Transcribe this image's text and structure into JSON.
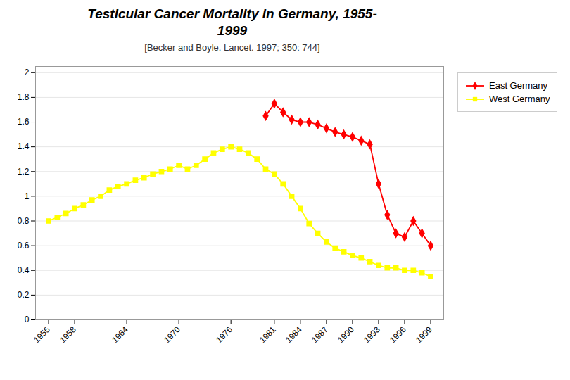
{
  "chart_data": {
    "type": "line",
    "title": "Testicular Cancer Mortality in Germany, 1955-\n1999",
    "subtitle": "[Becker and Boyle. Lancet. 1997; 350: 744]",
    "series": [
      {
        "name": "West Germany",
        "color": "#ffff00",
        "marker": "square",
        "line_style": "solid",
        "x": [
          1955,
          1956,
          1957,
          1958,
          1959,
          1960,
          1961,
          1962,
          1963,
          1964,
          1965,
          1966,
          1967,
          1968,
          1969,
          1970,
          1971,
          1972,
          1973,
          1974,
          1975,
          1976,
          1977,
          1978,
          1979,
          1980,
          1981,
          1982,
          1983,
          1984,
          1985,
          1986,
          1987,
          1988,
          1989,
          1990,
          1991,
          1992,
          1993,
          1994,
          1995,
          1996,
          1997,
          1998,
          1999
        ],
        "values": [
          0.8,
          0.83,
          0.86,
          0.9,
          0.93,
          0.97,
          1.0,
          1.05,
          1.08,
          1.1,
          1.13,
          1.15,
          1.18,
          1.2,
          1.22,
          1.25,
          1.22,
          1.25,
          1.3,
          1.35,
          1.38,
          1.4,
          1.38,
          1.35,
          1.3,
          1.22,
          1.18,
          1.1,
          1.0,
          0.9,
          0.78,
          0.7,
          0.63,
          0.58,
          0.55,
          0.52,
          0.5,
          0.47,
          0.44,
          0.42,
          0.42,
          0.4,
          0.4,
          0.38,
          0.35
        ]
      },
      {
        "name": "East Germany",
        "color": "#ff0000",
        "marker": "diamond",
        "line_style": "solid",
        "x": [
          1980,
          1981,
          1982,
          1983,
          1984,
          1985,
          1986,
          1987,
          1988,
          1989,
          1990,
          1991,
          1992,
          1993,
          1994,
          1995,
          1996,
          1997,
          1998,
          1999
        ],
        "values": [
          1.65,
          1.75,
          1.68,
          1.62,
          1.6,
          1.6,
          1.58,
          1.55,
          1.52,
          1.5,
          1.48,
          1.45,
          1.42,
          1.1,
          0.85,
          0.7,
          0.67,
          0.8,
          0.7,
          0.6
        ]
      }
    ],
    "xlim": [
      1953.5,
      2000.5
    ],
    "xticks": [
      1955,
      1958,
      1964,
      1970,
      1976,
      1981,
      1984,
      1987,
      1990,
      1993,
      1996,
      1999
    ],
    "ylim": [
      0,
      2.05
    ],
    "yticks": [
      0,
      0.2,
      0.4,
      0.6,
      0.8,
      1,
      1.2,
      1.4,
      1.6,
      1.8,
      2
    ],
    "grid": true,
    "legend": "right"
  }
}
